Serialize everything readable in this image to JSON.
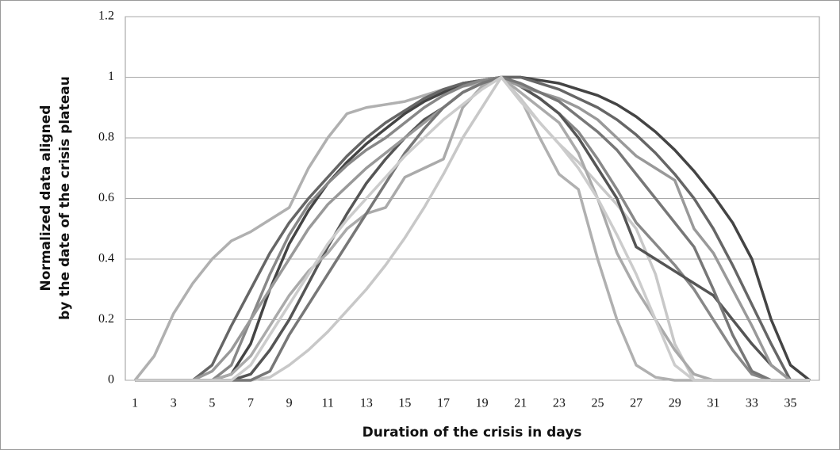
{
  "chart_data": {
    "type": "line",
    "ylabel": [
      "Normalized data aligned",
      "by the date of the crisis plateau"
    ],
    "xlabel": "Duration of the crisis in days",
    "x": [
      1,
      2,
      3,
      4,
      5,
      6,
      7,
      8,
      9,
      10,
      11,
      12,
      13,
      14,
      15,
      16,
      17,
      18,
      19,
      20,
      21,
      22,
      23,
      24,
      25,
      26,
      27,
      28,
      29,
      30,
      31,
      32,
      33,
      34,
      35,
      36
    ],
    "xlim": [
      0.5,
      36.5
    ],
    "xticks": [
      1,
      3,
      5,
      7,
      9,
      11,
      13,
      15,
      17,
      19,
      21,
      23,
      25,
      27,
      29,
      31,
      33,
      35
    ],
    "ylim": [
      0,
      1.2
    ],
    "yticks": [
      0,
      0.2,
      0.4,
      0.6,
      0.8,
      1,
      1.2
    ],
    "grid": true,
    "series": [
      {
        "color": "#b0b0b0",
        "values": [
          0,
          0.08,
          0.22,
          0.32,
          0.4,
          0.46,
          0.49,
          0.53,
          0.57,
          0.7,
          0.8,
          0.88,
          0.9,
          0.91,
          0.92,
          0.94,
          0.96,
          0.97,
          0.98,
          1,
          0.93,
          0.8,
          0.68,
          0.63,
          0.4,
          0.2,
          0.05,
          0.01,
          0,
          0,
          0,
          0,
          0,
          0,
          0,
          0
        ]
      },
      {
        "color": "#444444",
        "values": [
          0,
          0,
          0,
          0,
          0,
          0.02,
          0.12,
          0.3,
          0.45,
          0.56,
          0.65,
          0.72,
          0.78,
          0.83,
          0.88,
          0.92,
          0.95,
          0.98,
          0.99,
          1,
          1,
          0.99,
          0.98,
          0.96,
          0.94,
          0.91,
          0.87,
          0.82,
          0.76,
          0.69,
          0.61,
          0.52,
          0.4,
          0.2,
          0.05,
          0
        ]
      },
      {
        "color": "#666666",
        "values": [
          0,
          0,
          0,
          0,
          0.05,
          0.18,
          0.3,
          0.42,
          0.52,
          0.6,
          0.67,
          0.74,
          0.8,
          0.85,
          0.89,
          0.93,
          0.96,
          0.98,
          0.99,
          1,
          1,
          0.98,
          0.96,
          0.93,
          0.9,
          0.86,
          0.81,
          0.75,
          0.68,
          0.6,
          0.5,
          0.38,
          0.25,
          0.12,
          0,
          0
        ]
      },
      {
        "color": "#888888",
        "values": [
          0,
          0,
          0,
          0,
          0,
          0.05,
          0.2,
          0.35,
          0.48,
          0.58,
          0.65,
          0.71,
          0.76,
          0.8,
          0.85,
          0.9,
          0.94,
          0.97,
          0.99,
          1,
          0.97,
          0.93,
          0.88,
          0.82,
          0.73,
          0.63,
          0.52,
          0.45,
          0.38,
          0.3,
          0.2,
          0.1,
          0.02,
          0,
          0,
          0
        ]
      },
      {
        "color": "#c8c8c8",
        "values": [
          0,
          0,
          0,
          0,
          0,
          0,
          0,
          0.01,
          0.05,
          0.1,
          0.16,
          0.23,
          0.3,
          0.38,
          0.47,
          0.57,
          0.68,
          0.8,
          0.9,
          1,
          0.93,
          0.85,
          0.78,
          0.72,
          0.65,
          0.58,
          0.5,
          0.35,
          0.12,
          0,
          0,
          0,
          0,
          0,
          0,
          0
        ]
      },
      {
        "color": "#555555",
        "values": [
          0,
          0,
          0,
          0,
          0,
          0,
          0.02,
          0.1,
          0.2,
          0.32,
          0.44,
          0.55,
          0.65,
          0.73,
          0.8,
          0.86,
          0.9,
          0.95,
          0.98,
          1,
          0.97,
          0.93,
          0.88,
          0.8,
          0.7,
          0.6,
          0.44,
          0.4,
          0.36,
          0.32,
          0.28,
          0.2,
          0.12,
          0.05,
          0,
          0
        ]
      },
      {
        "color": "#999999",
        "values": [
          0,
          0,
          0,
          0,
          0.03,
          0.1,
          0.2,
          0.3,
          0.4,
          0.5,
          0.58,
          0.64,
          0.7,
          0.75,
          0.8,
          0.85,
          0.9,
          0.95,
          0.98,
          1,
          0.97,
          0.95,
          0.93,
          0.9,
          0.86,
          0.8,
          0.74,
          0.7,
          0.66,
          0.5,
          0.42,
          0.3,
          0.18,
          0.05,
          0,
          0
        ]
      },
      {
        "color": "#aaaaaa",
        "values": [
          0,
          0,
          0,
          0,
          0,
          0.02,
          0.08,
          0.18,
          0.28,
          0.36,
          0.42,
          0.5,
          0.55,
          0.57,
          0.67,
          0.7,
          0.73,
          0.9,
          0.97,
          1,
          0.95,
          0.9,
          0.85,
          0.75,
          0.6,
          0.42,
          0.3,
          0.2,
          0.1,
          0.02,
          0,
          0,
          0,
          0,
          0,
          0
        ]
      },
      {
        "color": "#777777",
        "values": [
          0,
          0,
          0,
          0,
          0,
          0,
          0,
          0.03,
          0.15,
          0.25,
          0.35,
          0.45,
          0.55,
          0.65,
          0.75,
          0.83,
          0.9,
          0.95,
          0.98,
          1,
          0.98,
          0.95,
          0.92,
          0.87,
          0.82,
          0.76,
          0.68,
          0.6,
          0.52,
          0.44,
          0.3,
          0.15,
          0.03,
          0,
          0,
          0
        ]
      },
      {
        "color": "#cccccc",
        "values": [
          0,
          0,
          0,
          0,
          0,
          0,
          0.05,
          0.15,
          0.25,
          0.35,
          0.45,
          0.53,
          0.6,
          0.67,
          0.74,
          0.8,
          0.86,
          0.91,
          0.96,
          1,
          0.92,
          0.85,
          0.78,
          0.7,
          0.6,
          0.48,
          0.35,
          0.2,
          0.05,
          0,
          0,
          0,
          0,
          0,
          0,
          0
        ]
      }
    ]
  }
}
